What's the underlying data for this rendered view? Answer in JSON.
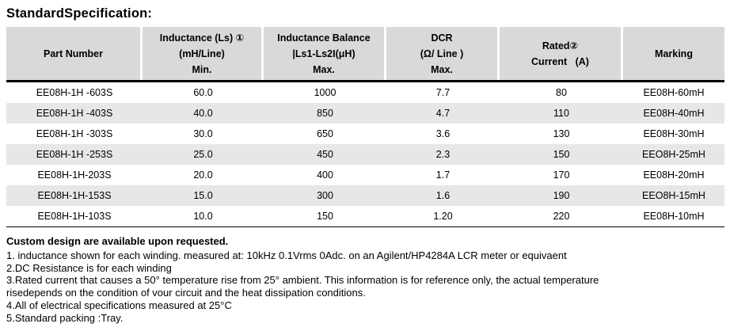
{
  "title": "StandardSpecification:",
  "table": {
    "headers": [
      "Part Number",
      "Inductance (Ls) ①\n(mH/Line)\nMin.",
      "Inductance Balance\n|Ls1-Ls2I(μH)\nMax.",
      "DCR\n(Ω/ Line )\nMax.",
      "Rated②\nCurrent   (A)",
      "Marking"
    ],
    "rows": [
      [
        "EE08H-1H -603S",
        "60.0",
        "1000",
        "7.7",
        "80",
        "EE08H-60mH"
      ],
      [
        "EE08H-1H -403S",
        "40.0",
        "850",
        "4.7",
        "110",
        "EE08H-40mH"
      ],
      [
        "EE08H-1H -303S",
        "30.0",
        "650",
        "3.6",
        "130",
        "EE08H-30mH"
      ],
      [
        "EE08H-1H -253S",
        "25.0",
        "450",
        "2.3",
        "150",
        "EEO8H-25mH"
      ],
      [
        "EE08H-1H-203S",
        "20.0",
        "400",
        "1.7",
        "170",
        "EE08H-20mH"
      ],
      [
        "EE08H-1H-153S",
        "15.0",
        "300",
        "1.6",
        "190",
        "EEO8H-15mH"
      ],
      [
        "EE08H-1H-103S",
        "10.0",
        "150",
        "1.20",
        "220",
        "EE08H-10mH"
      ]
    ],
    "colors": {
      "header_bg": "#d9d9d9",
      "row_alt_bg": "#e7e7e7",
      "rule": "#000000"
    }
  },
  "notes": {
    "heading": "Custom design are available upon requested.",
    "lines": [
      "1. inductance shown for each winding. measured at: 10kHz 0.1Vrms 0Adc. on an Agilent/HP4284A LCR meter or equivaent",
      "2.DC Resistance is for each winding",
      "3.Rated current that causes a 50° temperature rise from 25° ambient. This information is for reference only, the actual temperature",
      "risedepends on the condition of vour circuit and the heat dissipation conditions.",
      "4.All of electrical specifications measured at 25°C",
      "5.Standard packing :Tray."
    ]
  }
}
